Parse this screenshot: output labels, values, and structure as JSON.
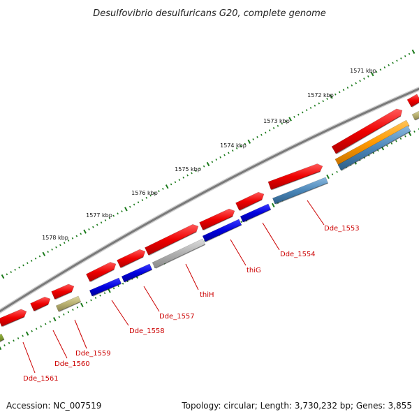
{
  "title": "Desulfovibrio desulfuricans G20, complete genome",
  "accession": "Accession: NC_007519",
  "topology": "Topology: circular; Length: 3,730,232 bp; Genes: 3,855",
  "ticks": [
    "1571 kbp",
    "1572 kbp",
    "1573 kbp",
    "1574 kbp",
    "1575 kbp",
    "1576 kbp",
    "1577 kbp",
    "1578 kbp"
  ],
  "gene_labels": [
    "Dde_1553",
    "Dde_1554",
    "thiG",
    "thiH",
    "Dde_1557",
    "Dde_1558",
    "Dde_1559",
    "Dde_1560",
    "Dde_1561"
  ],
  "colors": {
    "backbone": "#7a7a7a",
    "cds": "#ee0000",
    "tick_dots": "#1a7a1a",
    "category_blue": "#0000dd",
    "category_steel": "#4a86b8",
    "category_orange": "#ff9900",
    "category_olive": "#b8b070",
    "category_grey": "#b0b0b0",
    "label": "#cc0000"
  }
}
